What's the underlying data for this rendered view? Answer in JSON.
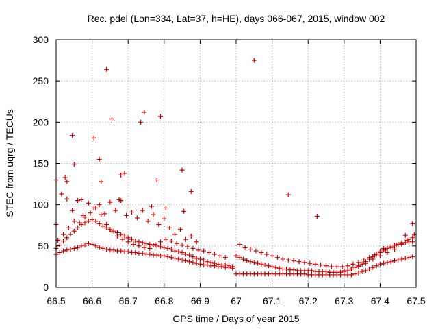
{
  "chart_data": {
    "type": "scatter",
    "title": "Rec. pdel (Lon=334, Lat=37, h=HE), days 066-067, 2015, window 002",
    "xlabel": "GPS time / Days of year 2015",
    "ylabel": "STEC from uqrg / TECUs",
    "xlim": [
      66.5,
      67.5
    ],
    "ylim": [
      0,
      300
    ],
    "xticks": [
      "66.5",
      "66.6",
      "66.7",
      "66.8",
      "66.9",
      "67",
      "67.1",
      "67.2",
      "67.3",
      "67.4",
      "67.5"
    ],
    "yticks": [
      "0",
      "50",
      "100",
      "150",
      "200",
      "250",
      "300"
    ],
    "grid": true,
    "marker": "+",
    "color": "#cc0000",
    "series": [
      {
        "name": "STEC",
        "x": [
          66.5,
          66.51,
          66.52,
          66.53,
          66.54,
          66.55,
          66.56,
          66.57,
          66.58,
          66.59,
          66.6,
          66.61,
          66.62,
          66.63,
          66.64,
          66.65,
          66.66,
          66.67,
          66.68,
          66.69,
          66.7,
          66.71,
          66.72,
          66.73,
          66.74,
          66.75,
          66.76,
          66.77,
          66.78,
          66.79,
          66.8,
          66.81,
          66.82,
          66.83,
          66.84,
          66.85,
          66.86,
          66.87,
          66.88,
          66.89,
          66.9,
          66.91,
          66.92,
          66.93,
          66.94,
          66.95,
          66.96,
          66.97,
          66.98,
          66.99,
          67.0,
          67.01,
          67.02,
          67.03,
          67.04,
          67.05,
          67.06,
          67.07,
          67.08,
          67.09,
          67.1,
          67.11,
          67.12,
          67.13,
          67.14,
          67.15,
          67.16,
          67.17,
          67.18,
          67.19,
          67.2,
          67.21,
          67.22,
          67.23,
          67.24,
          67.25,
          67.26,
          67.27,
          67.28,
          67.29,
          67.3,
          67.31,
          67.32,
          67.33,
          67.34,
          67.35,
          67.36,
          67.37,
          67.38,
          67.39,
          67.4,
          67.41,
          67.42,
          67.43,
          67.44,
          67.45,
          67.46,
          67.47,
          67.48,
          67.49,
          66.5,
          66.51,
          66.52,
          66.53,
          66.54,
          66.55,
          66.56,
          66.57,
          66.58,
          66.59,
          66.6,
          66.61,
          66.62,
          66.63,
          66.64,
          66.65,
          66.66,
          66.67,
          66.68,
          66.69,
          66.7,
          66.71,
          66.72,
          66.73,
          66.74,
          66.75,
          66.76,
          66.77,
          66.78,
          66.79,
          66.8,
          66.81,
          66.82,
          66.83,
          66.84,
          66.85,
          66.86,
          66.87,
          66.88,
          66.89,
          66.9,
          66.91,
          66.92,
          66.93,
          66.94,
          66.95,
          66.96,
          66.97,
          66.98,
          66.99,
          67.0,
          67.01,
          67.02,
          67.03,
          67.04,
          67.05,
          67.06,
          67.07,
          67.08,
          67.09,
          67.1,
          67.11,
          67.12,
          67.13,
          67.14,
          67.15,
          67.16,
          67.17,
          67.18,
          67.19,
          67.2,
          67.21,
          67.22,
          67.23,
          67.24,
          67.25,
          67.26,
          67.27,
          67.28,
          67.29,
          67.3,
          67.31,
          67.32,
          67.33,
          67.34,
          67.35,
          67.36,
          67.37,
          67.38,
          67.39,
          67.4,
          67.41,
          67.42,
          67.43,
          67.44,
          67.45,
          67.46,
          67.47,
          67.48,
          67.49,
          66.505,
          66.52,
          66.535,
          66.55,
          66.565,
          66.58,
          66.595,
          66.61,
          66.625,
          66.64,
          66.655,
          66.67,
          66.685,
          66.7,
          66.715,
          66.73,
          66.745,
          66.76,
          66.775,
          66.79,
          66.805,
          66.82,
          66.835,
          66.85,
          66.865,
          66.88,
          66.895,
          66.91,
          66.925,
          66.94,
          66.955,
          66.97,
          67.01,
          67.025,
          67.04,
          67.055,
          67.07,
          67.085,
          67.1,
          67.115,
          67.13,
          67.145,
          67.16,
          67.175,
          67.19,
          67.205,
          67.22,
          67.235,
          67.25,
          67.265,
          67.28,
          67.295,
          67.31,
          67.325,
          67.34,
          67.355,
          67.37,
          67.385,
          67.4,
          67.415,
          67.43,
          67.445,
          67.46,
          67.475,
          67.49,
          66.5,
          66.515,
          66.53,
          66.545,
          66.56,
          66.575,
          66.59,
          66.605,
          66.62,
          66.635,
          66.65,
          66.665,
          66.68,
          66.695,
          66.71,
          66.725,
          66.74,
          66.755,
          66.77,
          66.785,
          66.8,
          66.815,
          66.83,
          66.845,
          66.86,
          66.875,
          66.89,
          67.3,
          67.32,
          67.34,
          67.36,
          67.38,
          67.4,
          67.42,
          67.44,
          67.46,
          67.48,
          67.495,
          66.5,
          66.525,
          66.53,
          66.545,
          66.55,
          66.57,
          66.605,
          66.62,
          66.625,
          66.64,
          66.655,
          66.675,
          66.68,
          66.69,
          66.735,
          66.745,
          66.765,
          66.78,
          66.79,
          66.805,
          66.85,
          66.855,
          66.875,
          67.05,
          67.145,
          67.225,
          67.41,
          67.47,
          67.49
        ],
        "y": [
          40,
          42,
          44,
          45,
          46,
          47,
          48,
          50,
          51,
          53,
          52,
          50,
          48,
          47,
          46,
          45,
          45,
          44,
          44,
          43,
          43,
          42,
          42,
          41,
          41,
          40,
          40,
          39,
          39,
          38,
          38,
          37,
          36,
          35,
          34,
          33,
          32,
          31,
          30,
          29,
          28,
          27,
          27,
          26,
          26,
          25,
          25,
          24,
          24,
          23,
          16,
          16,
          16,
          16,
          16,
          16,
          16,
          16,
          16,
          16,
          16,
          16,
          16,
          16,
          16,
          16,
          16,
          16,
          16,
          16,
          15,
          15,
          15,
          15,
          15,
          15,
          15,
          15,
          15,
          15,
          15,
          15,
          15,
          16,
          17,
          19,
          20,
          22,
          24,
          26,
          28,
          29,
          30,
          31,
          32,
          33,
          34,
          35,
          36,
          37,
          47,
          51,
          56,
          60,
          64,
          68,
          72,
          76,
          78,
          80,
          82,
          80,
          77,
          74,
          72,
          70,
          68,
          66,
          64,
          62,
          60,
          58,
          56,
          55,
          54,
          53,
          52,
          51,
          50,
          49,
          48,
          47,
          46,
          44,
          43,
          42,
          40,
          39,
          37,
          35,
          34,
          33,
          31,
          30,
          29,
          28,
          27,
          27,
          26,
          25,
          38,
          36,
          34,
          32,
          31,
          30,
          29,
          28,
          27,
          26,
          25,
          24,
          23,
          22,
          22,
          21,
          21,
          20,
          20,
          20,
          20,
          20,
          19,
          19,
          19,
          19,
          18,
          18,
          18,
          18,
          19,
          20,
          22,
          24,
          26,
          28,
          31,
          34,
          37,
          40,
          43,
          45,
          47,
          49,
          51,
          52,
          53,
          54,
          55,
          55,
          57,
          64,
          72,
          80,
          78,
          85,
          90,
          96,
          88,
          76,
          68,
          62,
          58,
          55,
          52,
          50,
          48,
          47,
          52,
          55,
          58,
          56,
          53,
          51,
          49,
          47,
          45,
          44,
          42,
          40,
          38,
          36,
          52,
          48,
          46,
          44,
          42,
          40,
          38,
          36,
          34,
          33,
          32,
          31,
          30,
          29,
          28,
          27,
          26,
          25,
          25,
          25,
          26,
          28,
          30,
          33,
          36,
          39,
          42,
          45,
          48,
          51,
          54,
          57,
          60,
          130,
          113,
          107,
          93,
          105,
          87,
          102,
          96,
          100,
          89,
          103,
          93,
          105,
          87,
          91,
          84,
          93,
          80,
          88,
          76,
          83,
          72,
          64,
          70,
          58,
          62,
          55,
          20,
          22,
          25,
          29,
          34,
          38,
          42,
          46,
          52,
          58,
          64,
          76,
          133,
          128,
          184,
          149,
          106,
          181,
          155,
          128,
          264,
          204,
          106,
          136,
          138,
          200,
          212,
          98,
          130,
          207,
          96,
          142,
          92,
          116,
          275,
          112,
          86,
          47,
          63,
          77
        ]
      }
    ]
  }
}
